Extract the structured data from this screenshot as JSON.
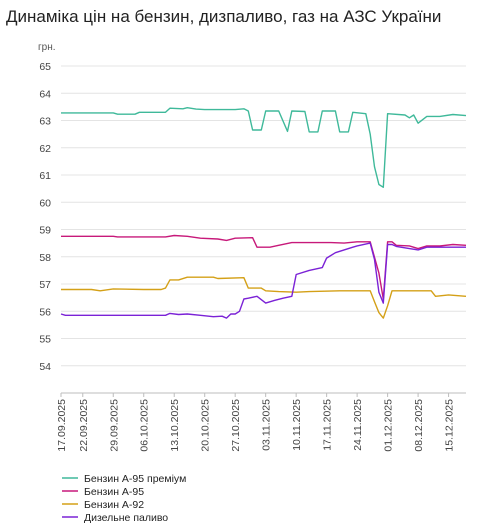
{
  "title": "Динаміка цін на бензин, дизпаливо, газ на АЗС України",
  "chart_data": {
    "type": "line",
    "title": "Динаміка цін на бензин, дизпаливо, газ на АЗС України",
    "ylabel": "грн.",
    "xlabel": "",
    "ylim": [
      53,
      65
    ],
    "yticks": [
      54,
      55,
      56,
      57,
      58,
      59,
      60,
      61,
      62,
      63,
      64,
      65
    ],
    "grid": "horizontal",
    "legend_position": "bottom-left",
    "x_start": "2025-09-17",
    "x_end": "2025-12-19",
    "x_ticks": [
      "17.09.2025",
      "22.09.2025",
      "29.09.2025",
      "06.10.2025",
      "13.10.2025",
      "20.10.2025",
      "27.10.2025",
      "03.11.2025",
      "10.11.2025",
      "17.11.2025",
      "24.11.2025",
      "01.12.2025",
      "08.12.2025",
      "15.12.2025"
    ],
    "series": [
      {
        "name": "Бензин А-95 преміум",
        "color": "#3fb99a",
        "points": [
          [
            "2025-09-17",
            63.28
          ],
          [
            "2025-09-29",
            63.28
          ],
          [
            "2025-09-30",
            63.23
          ],
          [
            "2025-10-04",
            63.23
          ],
          [
            "2025-10-05",
            63.3
          ],
          [
            "2025-10-11",
            63.3
          ],
          [
            "2025-10-12",
            63.45
          ],
          [
            "2025-10-15",
            63.43
          ],
          [
            "2025-10-16",
            63.47
          ],
          [
            "2025-10-18",
            63.42
          ],
          [
            "2025-10-20",
            63.4
          ],
          [
            "2025-10-27",
            63.4
          ],
          [
            "2025-10-29",
            63.43
          ],
          [
            "2025-10-30",
            63.35
          ],
          [
            "2025-10-31",
            62.65
          ],
          [
            "2025-11-02",
            62.65
          ],
          [
            "2025-11-03",
            63.35
          ],
          [
            "2025-11-06",
            63.35
          ],
          [
            "2025-11-08",
            62.6
          ],
          [
            "2025-11-09",
            63.35
          ],
          [
            "2025-11-12",
            63.33
          ],
          [
            "2025-11-13",
            62.58
          ],
          [
            "2025-11-15",
            62.58
          ],
          [
            "2025-11-16",
            63.35
          ],
          [
            "2025-11-19",
            63.35
          ],
          [
            "2025-11-20",
            62.58
          ],
          [
            "2025-11-22",
            62.58
          ],
          [
            "2025-11-23",
            63.3
          ],
          [
            "2025-11-26",
            63.25
          ],
          [
            "2025-11-27",
            62.5
          ],
          [
            "2025-11-28",
            61.3
          ],
          [
            "2025-11-29",
            60.65
          ],
          [
            "2025-11-30",
            60.55
          ],
          [
            "2025-12-01",
            63.25
          ],
          [
            "2025-12-05",
            63.2
          ],
          [
            "2025-12-06",
            63.1
          ],
          [
            "2025-12-07",
            63.2
          ],
          [
            "2025-12-08",
            62.9
          ],
          [
            "2025-12-10",
            63.15
          ],
          [
            "2025-12-13",
            63.15
          ],
          [
            "2025-12-16",
            63.22
          ],
          [
            "2025-12-19",
            63.18
          ]
        ]
      },
      {
        "name": "Бензин А-95",
        "color": "#c7197a",
        "points": [
          [
            "2025-09-17",
            58.75
          ],
          [
            "2025-09-29",
            58.75
          ],
          [
            "2025-09-30",
            58.73
          ],
          [
            "2025-10-11",
            58.73
          ],
          [
            "2025-10-13",
            58.78
          ],
          [
            "2025-10-16",
            58.75
          ],
          [
            "2025-10-19",
            58.68
          ],
          [
            "2025-10-23",
            58.65
          ],
          [
            "2025-10-25",
            58.6
          ],
          [
            "2025-10-27",
            58.68
          ],
          [
            "2025-10-31",
            58.7
          ],
          [
            "2025-11-01",
            58.35
          ],
          [
            "2025-11-04",
            58.35
          ],
          [
            "2025-11-06",
            58.42
          ],
          [
            "2025-11-09",
            58.52
          ],
          [
            "2025-11-12",
            58.52
          ],
          [
            "2025-11-18",
            58.52
          ],
          [
            "2025-11-21",
            58.5
          ],
          [
            "2025-11-24",
            58.55
          ],
          [
            "2025-11-27",
            58.55
          ],
          [
            "2025-11-29",
            57.4
          ],
          [
            "2025-11-30",
            56.45
          ],
          [
            "2025-12-01",
            58.55
          ],
          [
            "2025-12-02",
            58.55
          ],
          [
            "2025-12-03",
            58.42
          ],
          [
            "2025-12-06",
            58.4
          ],
          [
            "2025-12-08",
            58.3
          ],
          [
            "2025-12-10",
            58.4
          ],
          [
            "2025-12-13",
            58.4
          ],
          [
            "2025-12-16",
            58.45
          ],
          [
            "2025-12-19",
            58.42
          ]
        ]
      },
      {
        "name": "Бензин А-92",
        "color": "#d4a017",
        "points": [
          [
            "2025-09-17",
            56.8
          ],
          [
            "2025-09-24",
            56.8
          ],
          [
            "2025-09-26",
            56.75
          ],
          [
            "2025-09-29",
            56.82
          ],
          [
            "2025-10-06",
            56.8
          ],
          [
            "2025-10-10",
            56.8
          ],
          [
            "2025-10-11",
            56.85
          ],
          [
            "2025-10-12",
            57.15
          ],
          [
            "2025-10-14",
            57.15
          ],
          [
            "2025-10-16",
            57.25
          ],
          [
            "2025-10-22",
            57.25
          ],
          [
            "2025-10-23",
            57.2
          ],
          [
            "2025-10-29",
            57.23
          ],
          [
            "2025-10-30",
            56.85
          ],
          [
            "2025-11-02",
            56.85
          ],
          [
            "2025-11-03",
            56.75
          ],
          [
            "2025-11-06",
            56.72
          ],
          [
            "2025-11-10",
            56.7
          ],
          [
            "2025-11-13",
            56.72
          ],
          [
            "2025-11-20",
            56.75
          ],
          [
            "2025-11-27",
            56.75
          ],
          [
            "2025-11-28",
            56.35
          ],
          [
            "2025-11-29",
            55.95
          ],
          [
            "2025-11-30",
            55.75
          ],
          [
            "2025-12-01",
            56.2
          ],
          [
            "2025-12-02",
            56.75
          ],
          [
            "2025-12-07",
            56.75
          ],
          [
            "2025-12-09",
            56.75
          ],
          [
            "2025-12-11",
            56.75
          ],
          [
            "2025-12-12",
            56.55
          ],
          [
            "2025-12-15",
            56.6
          ],
          [
            "2025-12-19",
            56.55
          ]
        ]
      },
      {
        "name": "Дизельне паливо",
        "color": "#7b22d6",
        "points": [
          [
            "2025-09-17",
            55.9
          ],
          [
            "2025-09-18",
            55.85
          ],
          [
            "2025-10-11",
            55.85
          ],
          [
            "2025-10-12",
            55.92
          ],
          [
            "2025-10-14",
            55.88
          ],
          [
            "2025-10-16",
            55.9
          ],
          [
            "2025-10-19",
            55.85
          ],
          [
            "2025-10-22",
            55.8
          ],
          [
            "2025-10-24",
            55.82
          ],
          [
            "2025-10-25",
            55.75
          ],
          [
            "2025-10-26",
            55.9
          ],
          [
            "2025-10-27",
            55.9
          ],
          [
            "2025-10-28",
            56.0
          ],
          [
            "2025-10-29",
            56.45
          ],
          [
            "2025-10-30",
            56.48
          ],
          [
            "2025-11-01",
            56.55
          ],
          [
            "2025-11-03",
            56.3
          ],
          [
            "2025-11-05",
            56.4
          ],
          [
            "2025-11-07",
            56.48
          ],
          [
            "2025-11-09",
            56.55
          ],
          [
            "2025-11-10",
            57.35
          ],
          [
            "2025-11-13",
            57.5
          ],
          [
            "2025-11-16",
            57.6
          ],
          [
            "2025-11-17",
            57.95
          ],
          [
            "2025-11-19",
            58.15
          ],
          [
            "2025-11-21",
            58.25
          ],
          [
            "2025-11-23",
            58.35
          ],
          [
            "2025-11-24",
            58.4
          ],
          [
            "2025-11-27",
            58.5
          ],
          [
            "2025-11-28",
            57.9
          ],
          [
            "2025-11-29",
            56.7
          ],
          [
            "2025-11-30",
            56.3
          ],
          [
            "2025-12-01",
            58.45
          ],
          [
            "2025-12-02",
            58.45
          ],
          [
            "2025-12-03",
            58.38
          ],
          [
            "2025-12-06",
            58.3
          ],
          [
            "2025-12-08",
            58.25
          ],
          [
            "2025-12-10",
            58.35
          ],
          [
            "2025-12-13",
            58.35
          ],
          [
            "2025-12-16",
            58.35
          ],
          [
            "2025-12-19",
            58.35
          ]
        ]
      }
    ]
  }
}
